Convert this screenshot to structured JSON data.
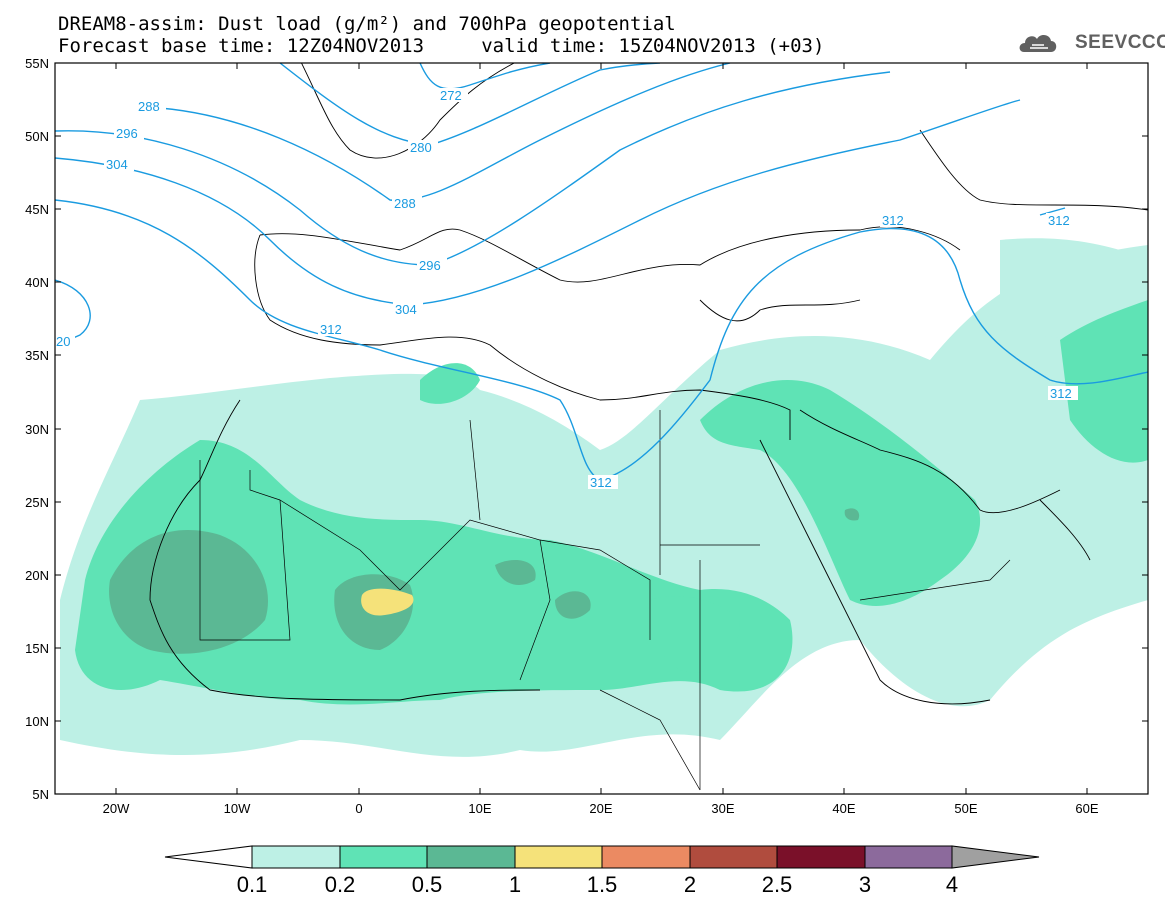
{
  "title": {
    "line1": "DREAM8-assim: Dust load (g/m²) and 700hPa geopotential",
    "line2": "Forecast base time: 12Z04NOV2013     valid time: 15Z04NOV2013 (+03)"
  },
  "logo": {
    "text": "SEEVCCC",
    "icon": "cloud-icon"
  },
  "map": {
    "lon_ticks": [
      "20W",
      "10W",
      "0",
      "10E",
      "20E",
      "30E",
      "40E",
      "50E",
      "60E"
    ],
    "lat_ticks": [
      "55N",
      "50N",
      "45N",
      "40N",
      "35N",
      "30N",
      "25N",
      "20N",
      "15N",
      "10N",
      "5N"
    ],
    "lon_range": [
      -25,
      65
    ],
    "lat_range": [
      5,
      55
    ],
    "contour_color": "#1a9be0",
    "contour_labels": [
      "272",
      "280",
      "288",
      "288",
      "296",
      "296",
      "304",
      "304",
      "312",
      "312",
      "312",
      "312",
      "312",
      "20"
    ]
  },
  "colorbar": {
    "labels": [
      "0.1",
      "0.2",
      "0.5",
      "1",
      "1.5",
      "2",
      "2.5",
      "3",
      "4"
    ],
    "colors": [
      "#ffffff",
      "#bdf0e5",
      "#5fe3b5",
      "#5bb894",
      "#f5e27a",
      "#eb8a62",
      "#b04c3e",
      "#7a1029",
      "#8c6a9c",
      "#a0a0a0"
    ]
  }
}
